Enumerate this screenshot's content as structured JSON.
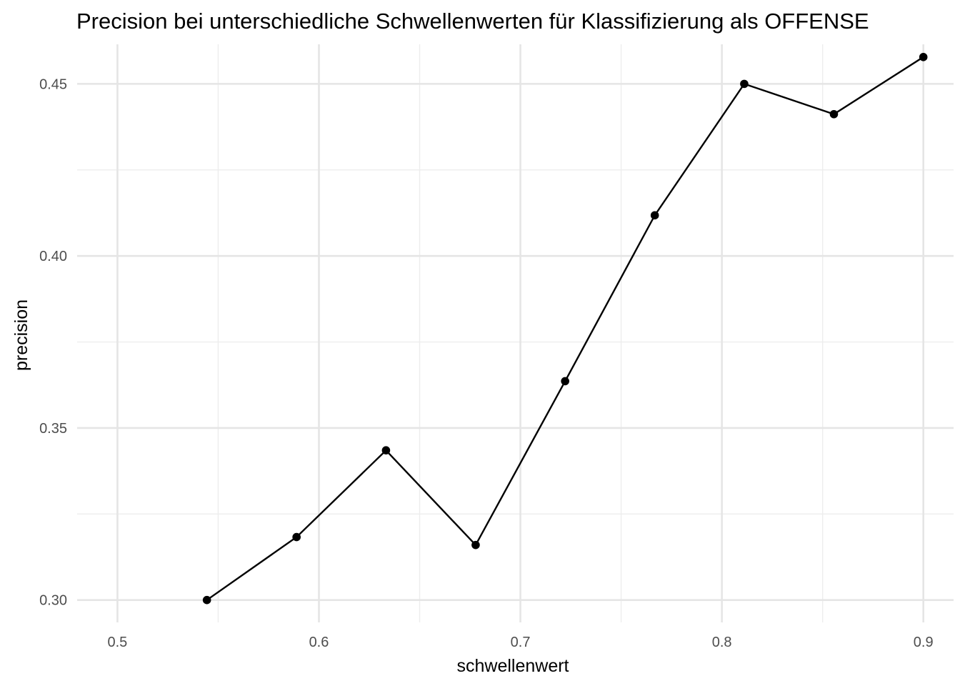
{
  "chart_data": {
    "type": "line",
    "title": "Precision bei unterschiedliche Schwellenwerten für Klassifizierung als OFFENSE",
    "xlabel": "schwellenwert",
    "ylabel": "precision",
    "xlim": [
      0.48,
      0.915
    ],
    "ylim": [
      0.2935,
      0.4615
    ],
    "x_ticks": [
      0.5,
      0.6,
      0.7,
      0.8,
      0.9
    ],
    "x_tick_labels": [
      "0.5",
      "0.6",
      "0.7",
      "0.8",
      "0.9"
    ],
    "x_minor_ticks": [
      0.55,
      0.65,
      0.75,
      0.85
    ],
    "y_ticks": [
      0.3,
      0.35,
      0.4,
      0.45
    ],
    "y_tick_labels": [
      "0.30",
      "0.35",
      "0.40",
      "0.45"
    ],
    "y_minor_ticks": [
      0.325,
      0.375,
      0.425
    ],
    "grid": true,
    "legend": "none",
    "series": [
      {
        "color": "#000000",
        "x": [
          0.5444,
          0.5889,
          0.6333,
          0.6778,
          0.7222,
          0.7667,
          0.8111,
          0.8556,
          0.9
        ],
        "y": [
          0.3,
          0.3183,
          0.3435,
          0.316,
          0.3636,
          0.4118,
          0.45,
          0.4412,
          0.4578
        ]
      }
    ]
  }
}
